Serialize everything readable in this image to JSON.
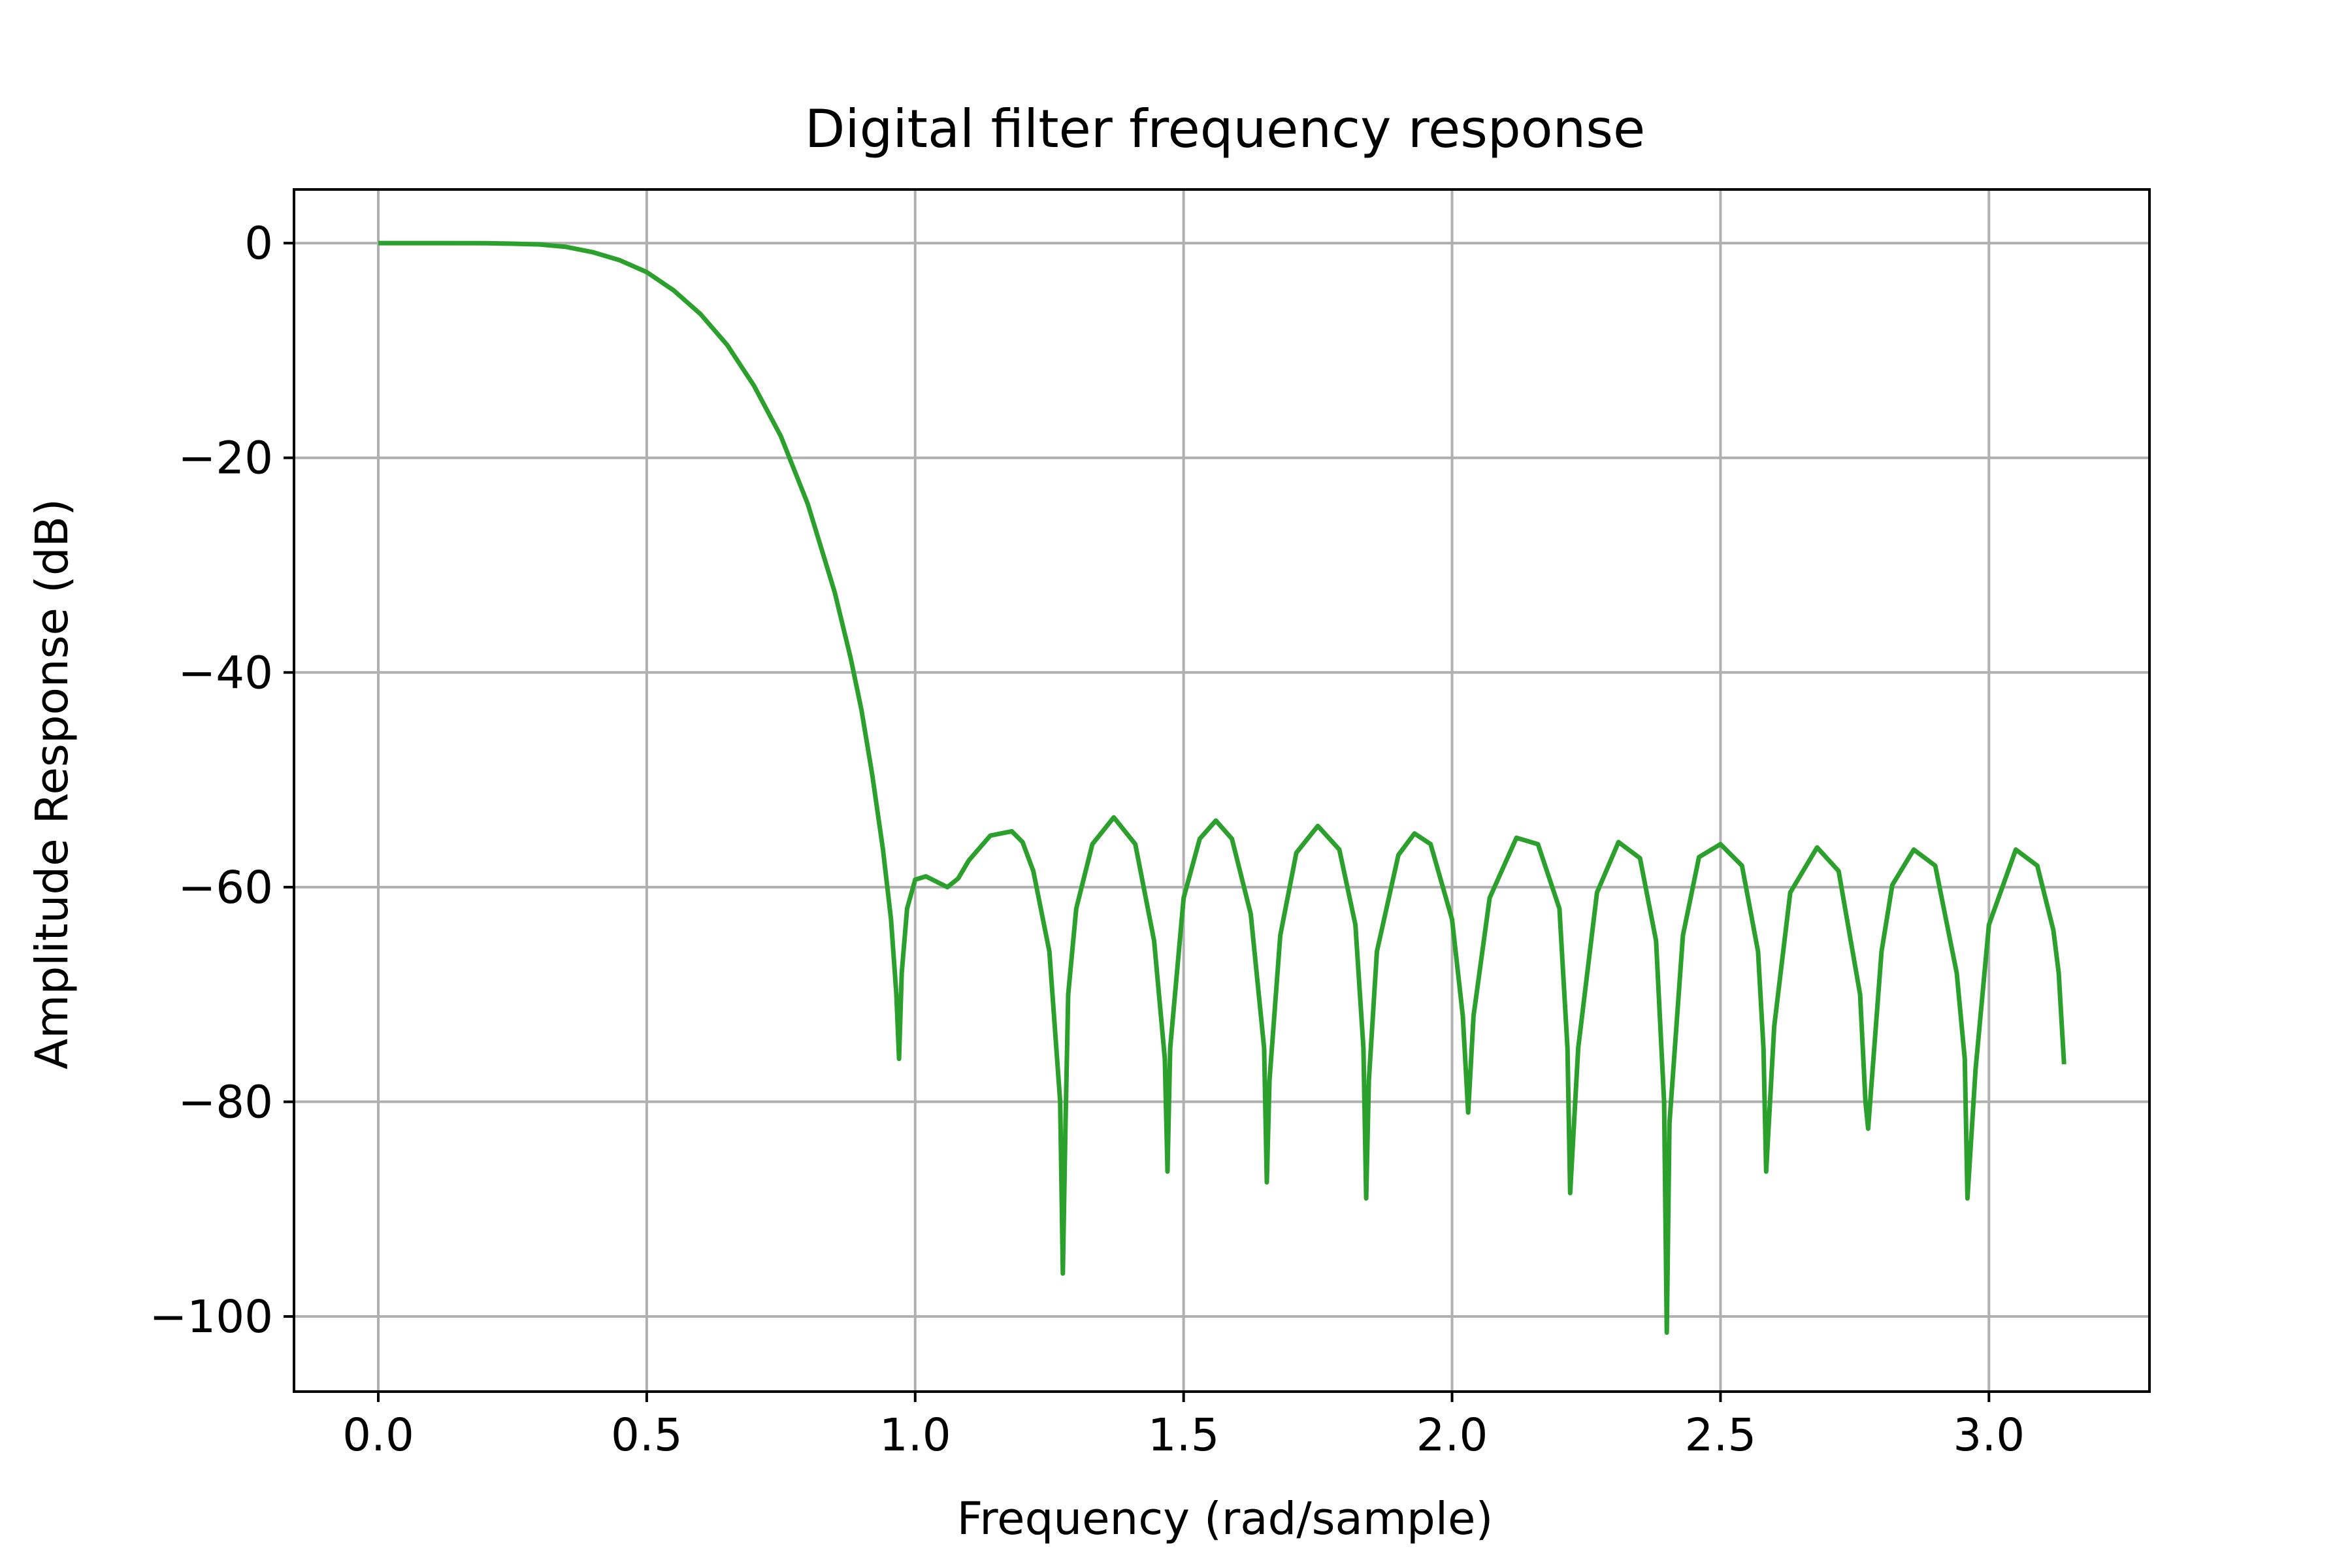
{
  "chart_data": {
    "type": "line",
    "title": "Digital filter frequency response",
    "xlabel": "Frequency (rad/sample)",
    "ylabel": "Amplitude Response (dB)",
    "xlim": [
      -0.157,
      3.299
    ],
    "ylim": [
      -107,
      5
    ],
    "xticks": [
      0.0,
      0.5,
      1.0,
      1.5,
      2.0,
      2.5,
      3.0
    ],
    "xtick_labels": [
      "0.0",
      "0.5",
      "1.0",
      "1.5",
      "2.0",
      "2.5",
      "3.0"
    ],
    "yticks": [
      0,
      -20,
      -40,
      -60,
      -80,
      -100
    ],
    "ytick_labels": [
      "0",
      "−20",
      "−40",
      "−60",
      "−80",
      "−100"
    ],
    "grid": true,
    "legend": "none",
    "series": [
      {
        "color": "#2ca02c",
        "x": [
          0,
          0.1,
          0.2,
          0.25,
          0.3,
          0.35,
          0.4,
          0.45,
          0.5,
          0.55,
          0.6,
          0.65,
          0.7,
          0.75,
          0.8,
          0.85,
          0.88,
          0.9,
          0.92,
          0.94,
          0.955,
          0.965,
          0.97,
          0.975,
          0.985,
          1.0,
          1.02,
          1.04,
          1.06,
          1.08,
          1.1,
          1.14,
          1.18,
          1.2,
          1.22,
          1.25,
          1.27,
          1.275,
          1.28,
          1.285,
          1.3,
          1.33,
          1.37,
          1.41,
          1.445,
          1.465,
          1.47,
          1.475,
          1.5,
          1.53,
          1.56,
          1.59,
          1.625,
          1.65,
          1.655,
          1.66,
          1.68,
          1.71,
          1.75,
          1.79,
          1.82,
          1.835,
          1.84,
          1.845,
          1.86,
          1.9,
          1.93,
          1.96,
          2.0,
          2.02,
          2.03,
          2.04,
          2.07,
          2.12,
          2.16,
          2.2,
          2.215,
          2.22,
          2.235,
          2.27,
          2.31,
          2.35,
          2.38,
          2.395,
          2.4,
          2.405,
          2.43,
          2.46,
          2.5,
          2.54,
          2.57,
          2.58,
          2.585,
          2.6,
          2.63,
          2.68,
          2.72,
          2.76,
          2.77,
          2.775,
          2.8,
          2.82,
          2.86,
          2.9,
          2.94,
          2.955,
          2.96,
          2.975,
          3.0,
          3.05,
          3.09,
          3.12,
          3.13,
          3.14
        ],
        "y": [
          0,
          0,
          -0.01,
          -0.05,
          -0.12,
          -0.35,
          -0.85,
          -1.6,
          -2.7,
          -4.4,
          -6.6,
          -9.5,
          -13.3,
          -18,
          -24.3,
          -32.5,
          -38.7,
          -43.5,
          -49.5,
          -56.5,
          -63,
          -70,
          -76,
          -68,
          -62,
          -59.3,
          -59,
          -59.5,
          -60,
          -59.2,
          -57.5,
          -55.2,
          -54.8,
          -55.8,
          -58.5,
          -66,
          -80,
          -96,
          -82,
          -70,
          -62,
          -56,
          -53.5,
          -56,
          -65,
          -76,
          -86.5,
          -75,
          -61,
          -55.5,
          -53.8,
          -55.5,
          -62.5,
          -75,
          -87.5,
          -78,
          -64.5,
          -56.8,
          -54.3,
          -56.5,
          -63.5,
          -75,
          -89,
          -78,
          -66,
          -57,
          -55,
          -56,
          -63,
          -72,
          -81,
          -72,
          -61,
          -55.4,
          -56,
          -62,
          -75,
          -88.5,
          -75,
          -60.5,
          -55.8,
          -57.3,
          -65,
          -80,
          -101.5,
          -82,
          -64.5,
          -57.2,
          -56,
          -58,
          -66,
          -75,
          -86.5,
          -73,
          -60.5,
          -56.3,
          -58.5,
          -70,
          -80,
          -82.5,
          -66,
          -59.8,
          -56.5,
          -58,
          -68,
          -76,
          -89,
          -77,
          -63.5,
          -56.5,
          -58,
          -64,
          -68,
          -76.5
        ]
      }
    ]
  }
}
